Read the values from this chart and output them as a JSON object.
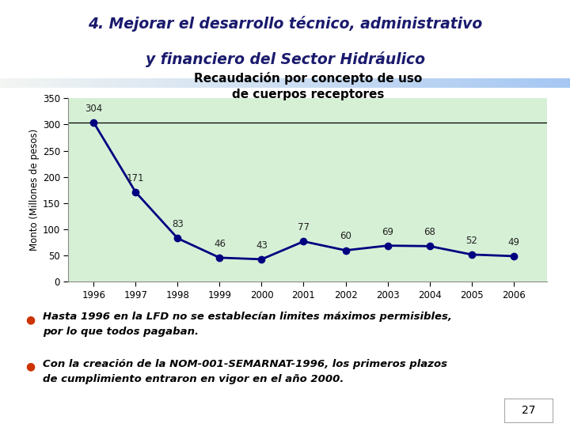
{
  "title_line1": "4. Mejorar el desarrollo técnico, administrativo",
  "title_line2": "y financiero del Sector Hidráulico",
  "chart_title_line1": "Recaudación por concepto de uso",
  "chart_title_line2": "de cuerpos receptores",
  "ylabel": "Monto (Millones de pesos)",
  "years": [
    1996,
    1997,
    1998,
    1999,
    2000,
    2001,
    2002,
    2003,
    2004,
    2005,
    2006
  ],
  "values": [
    304,
    171,
    83,
    46,
    43,
    77,
    60,
    69,
    68,
    52,
    49
  ],
  "ylim": [
    0,
    350
  ],
  "yticks": [
    0,
    50,
    100,
    150,
    200,
    250,
    300,
    350
  ],
  "line_color": "#000080",
  "marker_color": "#000080",
  "fill_color": "#d6f0d6",
  "bg_color": "#ffffff",
  "slide_bg": "#ffffff",
  "title_color": "#1a1a6e",
  "hline_value": 304,
  "hline_color": "#000000",
  "bullet1_l1": "Hasta 1996 en la LFD no se establecían limites máximos permisibles,",
  "bullet1_l2": "por lo que todos pagaban.",
  "bullet2_l1": "Con la creación de la NOM-001-SEMARNAT-1996, los primeros plazos",
  "bullet2_l2": "de cumplimiento entraron en vigor en el año 2000.",
  "slide_number": "27",
  "bullet_color": "#cc3300"
}
